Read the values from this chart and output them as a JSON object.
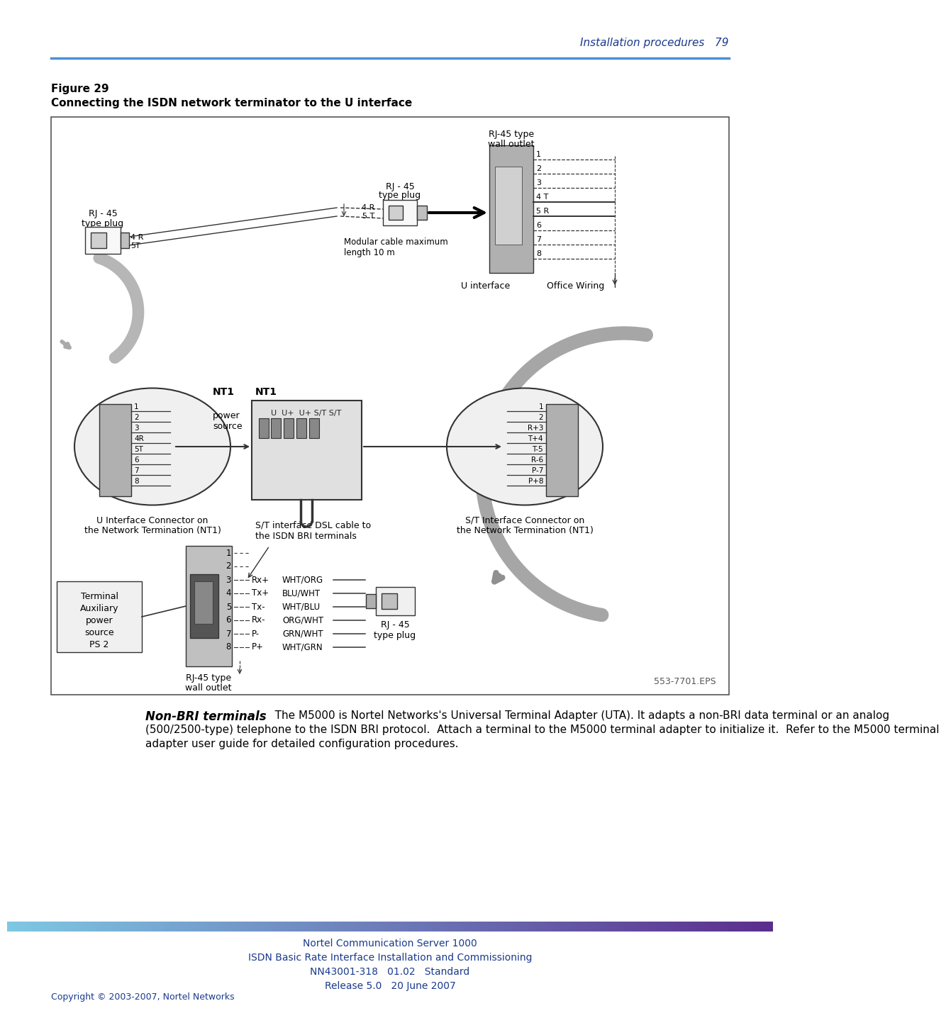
{
  "page_bg": "#ffffff",
  "header_line_color": "#4a90d9",
  "header_text": "Installation procedures   79",
  "header_text_color": "#1a3a8c",
  "fig_label": "Figure 29",
  "fig_title": "Connecting the ISDN network terminator to the U interface",
  "body_bold": "Non-BRI terminals",
  "body_rest_lines": [
    "   The M5000 is Nortel Networks's Universal Terminal Adapter (UTA). It adapts a non-BRI data terminal or an analog",
    "(500/2500-type) telephone to the ISDN BRI protocol.  Attach a terminal to the M5000 terminal adapter to initialize it.  Refer to the M5000 terminal",
    "adapter user guide for detailed configuration procedures."
  ],
  "footer_line1": "Nortel Communication Server 1000",
  "footer_line2": "ISDN Basic Rate Interface Installation and Commissioning",
  "footer_line3": "NN43001-318   01.02   Standard",
  "footer_line4": "Release 5.0   20 June 2007",
  "footer_text_color": "#1a3a8c",
  "copyright": "Copyright © 2003-2007, Nortel Networks",
  "copyright_color": "#1a3a8c",
  "eps_label": "553-7701.EPS"
}
